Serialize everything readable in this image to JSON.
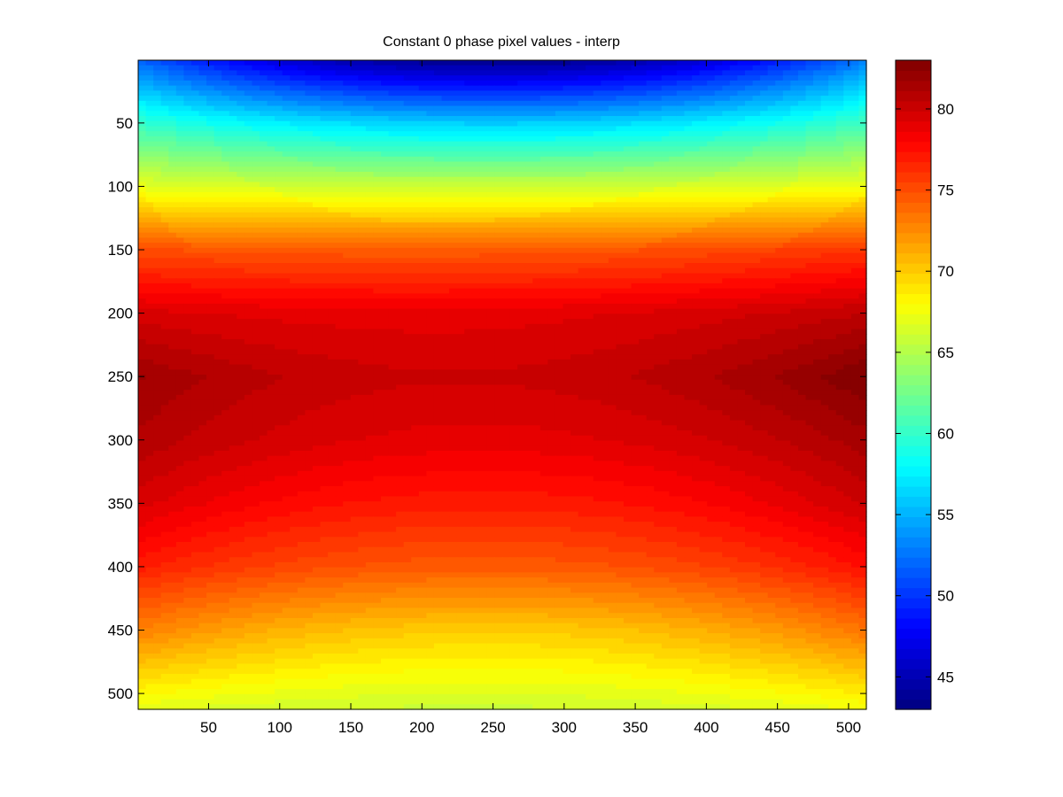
{
  "chart_data": {
    "type": "heatmap",
    "title": "Constant 0 phase pixel values - interp",
    "xlabel": "",
    "ylabel": "",
    "xlim": [
      1,
      512
    ],
    "ylim": [
      1,
      512
    ],
    "y_direction": "reversed",
    "x_ticks": [
      50,
      100,
      150,
      200,
      250,
      300,
      350,
      400,
      450,
      500
    ],
    "y_ticks": [
      50,
      100,
      150,
      200,
      250,
      300,
      350,
      400,
      450,
      500
    ],
    "colorbar": {
      "range": [
        43,
        83
      ],
      "ticks": [
        45,
        50,
        55,
        60,
        65,
        70,
        75,
        80
      ],
      "colormap": "jet",
      "levels": 64
    },
    "grid": false,
    "shading": "interp",
    "approx_values": {
      "x": [
        1,
        256,
        512
      ],
      "y": [
        1,
        50,
        100,
        150,
        200,
        250,
        300,
        350,
        400,
        450,
        512
      ],
      "z": [
        [
          52.0,
          43.5,
          53.0
        ],
        [
          60.0,
          56.0,
          60.5
        ],
        [
          67.0,
          66.0,
          67.5
        ],
        [
          75.0,
          74.5,
          76.0
        ],
        [
          79.5,
          79.0,
          80.5
        ],
        [
          81.8,
          80.0,
          83.0
        ],
        [
          81.0,
          79.0,
          81.5
        ],
        [
          79.5,
          77.0,
          80.0
        ],
        [
          77.0,
          74.5,
          77.5
        ],
        [
          73.0,
          70.0,
          73.5
        ],
        [
          67.0,
          66.0,
          67.5
        ]
      ]
    }
  }
}
